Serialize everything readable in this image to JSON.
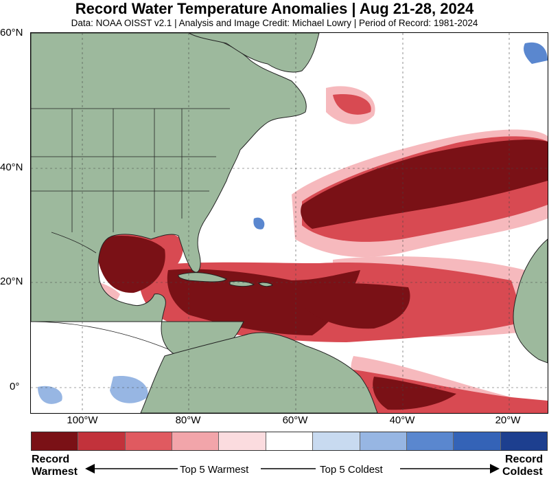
{
  "header": {
    "title": "Record Water Temperature Anomalies | Aug 21-28, 2024",
    "subtitle": "Data: NOAA OISST v2.1 | Analysis and Image Credit: Michael Lowry | Period of Record: 1981-2024"
  },
  "map": {
    "lat_labels": [
      "60°N",
      "40°N",
      "20°N",
      "0°"
    ],
    "lon_labels": [
      "100°W",
      "80°W",
      "60°W",
      "40°W",
      "20°W"
    ],
    "land_color": "#9db99d",
    "region": "North Atlantic, Gulf of Mexico and Caribbean"
  },
  "legend": {
    "colors": [
      "#7a1116",
      "#c2323b",
      "#e05a60",
      "#f2a5aa",
      "#fbdcdf",
      "#ffffff",
      "#c8daf0",
      "#97b6e3",
      "#5a87cf",
      "#3463b7",
      "#1d3f8f"
    ],
    "left_label_1": "Record",
    "left_label_2": "Warmest",
    "right_label_1": "Record",
    "right_label_2": "Coldest",
    "mid_left": "Top 5 Warmest",
    "mid_right": "Top 5 Coldest"
  }
}
